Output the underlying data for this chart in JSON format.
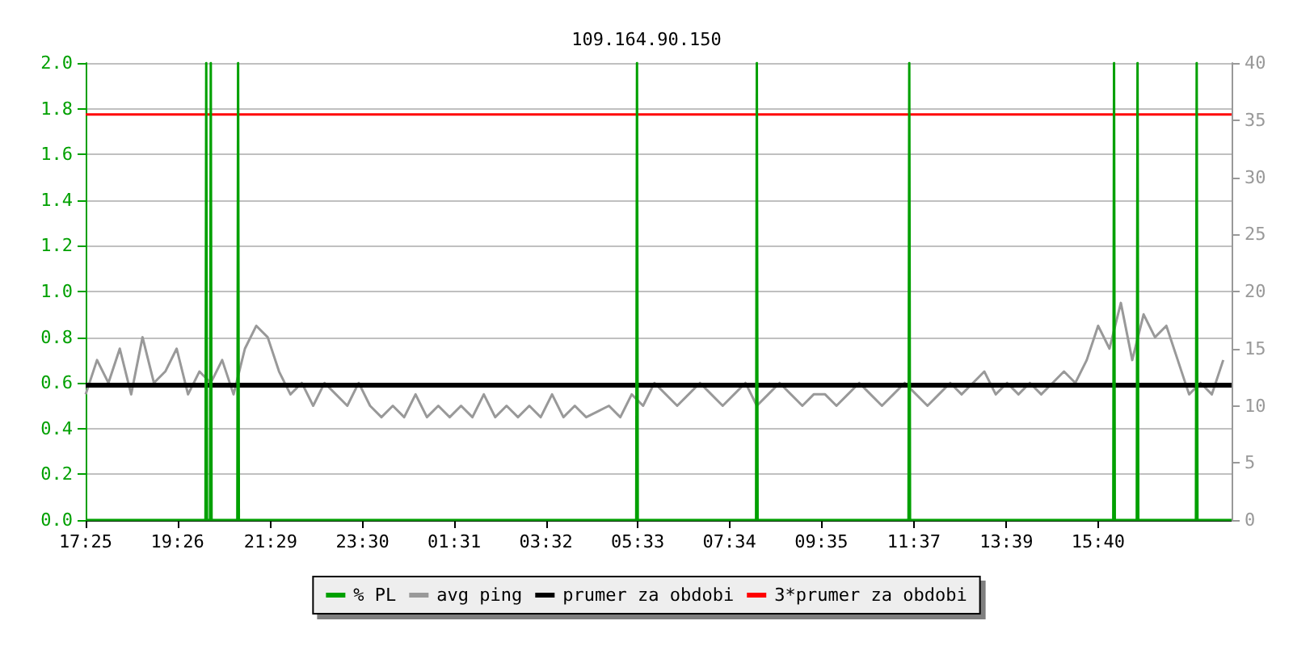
{
  "chart_data": {
    "type": "line",
    "title": "109.164.90.150",
    "xlim": [
      "--01-01T17:25",
      "--01-02T18:36"
    ],
    "xticks": [
      {
        "value": "--01-01T17:25",
        "label": "17:25"
      },
      {
        "value": "--01-01T19:26",
        "label": "19:26"
      },
      {
        "value": "--01-01T21:29",
        "label": "21:29"
      },
      {
        "value": "--01-01T23:30",
        "label": "23:30"
      },
      {
        "value": "--01-02T01:31",
        "label": "01:31"
      },
      {
        "value": "--01-02T03:32",
        "label": "03:32"
      },
      {
        "value": "--01-02T05:33",
        "label": "05:33"
      },
      {
        "value": "--01-02T07:34",
        "label": "07:34"
      },
      {
        "value": "--01-02T09:35",
        "label": "09:35"
      },
      {
        "value": "--01-02T11:37",
        "label": "11:37"
      },
      {
        "value": "--01-02T13:39",
        "label": "13:39"
      },
      {
        "value": "--01-02T15:40",
        "label": "15:40"
      }
    ],
    "ylim": [
      0,
      2
    ],
    "yticks": [
      {
        "value": 0,
        "label": "0.0"
      },
      {
        "value": 0.2,
        "label": "0.2"
      },
      {
        "value": 0.4,
        "label": "0.4"
      },
      {
        "value": 0.6,
        "label": "0.6"
      },
      {
        "value": 0.8,
        "label": "0.8"
      },
      {
        "value": 1,
        "label": "1.0"
      },
      {
        "value": 1.2,
        "label": "1.2"
      },
      {
        "value": 1.4,
        "label": "1.4"
      },
      {
        "value": 1.6,
        "label": "1.6"
      },
      {
        "value": 1.8,
        "label": "1.8"
      },
      {
        "value": 2,
        "label": "2.0"
      }
    ],
    "y2lim": [
      0,
      40
    ],
    "y2ticks": [
      0,
      5,
      10,
      15,
      20,
      25,
      30,
      35,
      40
    ],
    "grid": "y",
    "legend": "bottom",
    "marker": "none",
    "series": [
      {
        "name": "% PL",
        "color": "#00a000",
        "type": "step",
        "x": [
          "--01-01T17:25",
          "--01-01T20:03",
          "--01-01T20:04",
          "--01-01T20:05",
          "--01-01T20:09",
          "--01-01T20:10",
          "--01-01T20:11",
          "--01-01T20:45",
          "--01-01T20:46",
          "--01-01T20:47",
          "--01-02T05:31",
          "--01-02T05:32",
          "--01-02T05:33",
          "--01-02T08:09",
          "--01-02T08:10",
          "--01-02T08:11",
          "--01-02T11:30",
          "--01-02T11:31",
          "--01-02T11:32",
          "--01-02T16:00",
          "--01-02T16:01",
          "--01-02T16:02",
          "--01-02T16:31",
          "--01-02T16:32",
          "--01-02T16:33",
          "--01-02T17:49",
          "--01-02T17:50",
          "--01-02T17:51",
          "--01-02T18:36"
        ],
        "values": [
          0,
          0,
          2,
          0,
          0,
          2,
          0,
          0,
          2,
          0,
          0,
          2,
          0,
          0,
          2,
          0,
          0,
          2,
          0,
          0,
          2,
          0,
          0,
          2,
          0,
          0,
          2,
          0,
          0
        ]
      },
      {
        "name": "avg ping",
        "color": "#999999",
        "axis": "y2",
        "x": [
          "--01-01T17:25",
          "--01-01T17:40",
          "--01-01T17:55",
          "--01-01T18:10",
          "--01-01T18:25",
          "--01-01T18:40",
          "--01-01T18:55",
          "--01-01T19:10",
          "--01-01T19:25",
          "--01-01T19:40",
          "--01-01T19:55",
          "--01-01T20:10",
          "--01-01T20:25",
          "--01-01T20:40",
          "--01-01T20:55",
          "--01-01T21:10",
          "--01-01T21:25",
          "--01-01T21:40",
          "--01-01T21:55",
          "--01-01T22:10",
          "--01-01T22:25",
          "--01-01T22:40",
          "--01-01T22:55",
          "--01-01T23:10",
          "--01-01T23:25",
          "--01-01T23:40",
          "--01-01T23:55",
          "--01-02T00:10",
          "--01-02T00:25",
          "--01-02T00:40",
          "--01-02T00:55",
          "--01-02T01:10",
          "--01-02T01:25",
          "--01-02T01:40",
          "--01-02T01:55",
          "--01-02T02:10",
          "--01-02T02:25",
          "--01-02T02:40",
          "--01-02T02:55",
          "--01-02T03:10",
          "--01-02T03:25",
          "--01-02T03:40",
          "--01-02T03:55",
          "--01-02T04:10",
          "--01-02T04:25",
          "--01-02T04:40",
          "--01-02T04:55",
          "--01-02T05:10",
          "--01-02T05:25",
          "--01-02T05:40",
          "--01-02T05:55",
          "--01-02T06:10",
          "--01-02T06:25",
          "--01-02T06:40",
          "--01-02T06:55",
          "--01-02T07:10",
          "--01-02T07:25",
          "--01-02T07:40",
          "--01-02T07:55",
          "--01-02T08:10",
          "--01-02T08:25",
          "--01-02T08:40",
          "--01-02T08:55",
          "--01-02T09:10",
          "--01-02T09:25",
          "--01-02T09:40",
          "--01-02T09:55",
          "--01-02T10:10",
          "--01-02T10:25",
          "--01-02T10:40",
          "--01-02T10:55",
          "--01-02T11:10",
          "--01-02T11:25",
          "--01-02T11:40",
          "--01-02T11:55",
          "--01-02T12:10",
          "--01-02T12:25",
          "--01-02T12:40",
          "--01-02T12:55",
          "--01-02T13:10",
          "--01-02T13:25",
          "--01-02T13:40",
          "--01-02T13:55",
          "--01-02T14:10",
          "--01-02T14:25",
          "--01-02T14:40",
          "--01-02T14:55",
          "--01-02T15:10",
          "--01-02T15:25",
          "--01-02T15:40",
          "--01-02T15:55",
          "--01-02T16:10",
          "--01-02T16:25",
          "--01-02T16:40",
          "--01-02T16:55",
          "--01-02T17:10",
          "--01-02T17:25",
          "--01-02T17:40",
          "--01-02T17:55",
          "--01-02T18:10",
          "--01-02T18:25"
        ],
        "values": [
          11,
          14,
          12,
          15,
          11,
          16,
          12,
          13,
          15,
          11,
          13,
          12,
          14,
          11,
          15,
          17,
          16,
          13,
          11,
          12,
          10,
          12,
          11,
          10,
          12,
          10,
          9,
          10,
          9,
          11,
          9,
          10,
          9,
          10,
          9,
          11,
          9,
          10,
          9,
          10,
          9,
          11,
          9,
          10,
          9,
          9.5,
          10,
          9,
          11,
          10,
          12,
          11,
          10,
          11,
          12,
          11,
          10,
          11,
          12,
          10,
          11,
          12,
          11,
          10,
          11,
          11,
          10,
          11,
          12,
          11,
          10,
          11,
          12,
          11,
          10,
          11,
          12,
          11,
          12,
          13,
          11,
          12,
          11,
          12,
          11,
          12,
          13,
          12,
          14,
          17,
          15,
          19,
          14,
          18,
          16,
          17,
          14,
          11,
          12,
          11,
          14
        ]
      },
      {
        "name": "prumer za obdobi",
        "color": "#000000",
        "axis": "y2",
        "x": [
          "--01-01T17:25",
          "--01-02T18:36"
        ],
        "values": [
          11.8,
          11.8
        ]
      },
      {
        "name": "3*prumer za obdobi",
        "color": "#ff0000",
        "axis": "y2",
        "x": [
          "--01-01T17:25",
          "--01-02T18:36"
        ],
        "values": [
          35.5,
          35.5
        ]
      }
    ]
  }
}
